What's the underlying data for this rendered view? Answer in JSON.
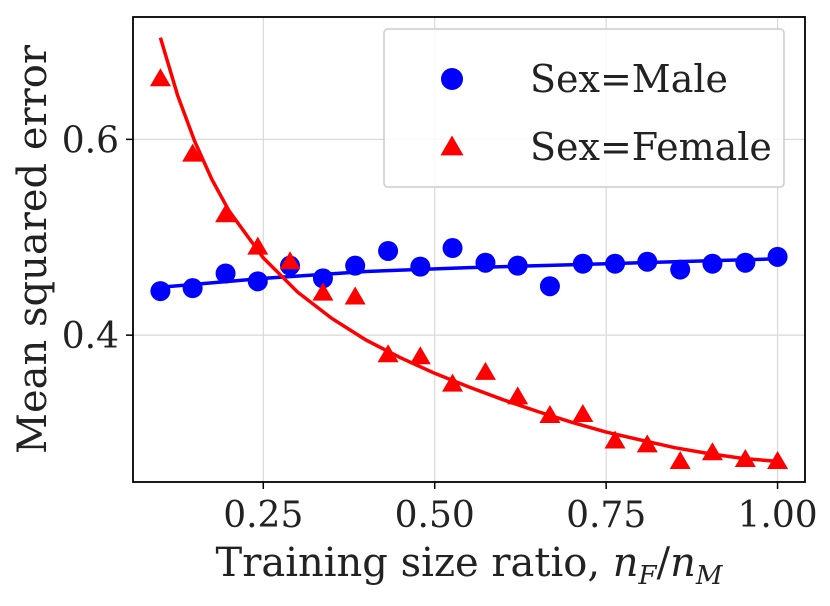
{
  "chart_data": {
    "type": "scatter",
    "title": "",
    "xlabel": "Training size ratio, n_F/n_M",
    "xlabel_prefix": "Training size ratio, ",
    "xlabel_math": {
      "n": "n",
      "sub_f": "F",
      "slash": "/",
      "sub_m": "M"
    },
    "ylabel": "Mean squared error",
    "xlim": [
      0.06,
      1.04
    ],
    "ylim": [
      0.25,
      0.725
    ],
    "grid": true,
    "legend_position": "top-right",
    "xticks": [
      0.25,
      0.5,
      0.75,
      1.0
    ],
    "xtick_labels": [
      "0.25",
      "0.50",
      "0.75",
      "1.00"
    ],
    "yticks": [
      0.4,
      0.6
    ],
    "ytick_labels": [
      "0.4",
      "0.6"
    ],
    "x": [
      0.1,
      0.147,
      0.195,
      0.242,
      0.289,
      0.337,
      0.384,
      0.432,
      0.479,
      0.526,
      0.574,
      0.621,
      0.668,
      0.716,
      0.763,
      0.81,
      0.858,
      0.905,
      0.953,
      1.0
    ],
    "series": [
      {
        "name": "Sex=Male",
        "marker": "circle",
        "color": "#0000ff",
        "values": [
          0.445,
          0.448,
          0.463,
          0.455,
          0.471,
          0.458,
          0.471,
          0.486,
          0.47,
          0.489,
          0.474,
          0.471,
          0.45,
          0.473,
          0.473,
          0.475,
          0.467,
          0.473,
          0.474,
          0.48
        ],
        "fit": [
          [
            0.1,
            0.449
          ],
          [
            0.25,
            0.458
          ],
          [
            0.4,
            0.465
          ],
          [
            0.55,
            0.469
          ],
          [
            0.7,
            0.472
          ],
          [
            0.85,
            0.475
          ],
          [
            1.0,
            0.478
          ]
        ]
      },
      {
        "name": "Sex=Female",
        "marker": "triangle",
        "color": "#ff0000",
        "values": [
          0.662,
          0.585,
          0.523,
          0.49,
          0.475,
          0.443,
          0.439,
          0.38,
          0.378,
          0.35,
          0.362,
          0.337,
          0.318,
          0.319,
          0.292,
          0.288,
          0.271,
          0.28,
          0.273,
          0.271
        ],
        "fit": [
          [
            0.1,
            0.704
          ],
          [
            0.125,
            0.645
          ],
          [
            0.15,
            0.598
          ],
          [
            0.175,
            0.559
          ],
          [
            0.2,
            0.527
          ],
          [
            0.25,
            0.479
          ],
          [
            0.3,
            0.444
          ],
          [
            0.35,
            0.417
          ],
          [
            0.4,
            0.395
          ],
          [
            0.45,
            0.377
          ],
          [
            0.5,
            0.361
          ],
          [
            0.55,
            0.347
          ],
          [
            0.6,
            0.334
          ],
          [
            0.65,
            0.322
          ],
          [
            0.7,
            0.311
          ],
          [
            0.75,
            0.301
          ],
          [
            0.8,
            0.293
          ],
          [
            0.85,
            0.285
          ],
          [
            0.9,
            0.279
          ],
          [
            0.95,
            0.274
          ],
          [
            1.0,
            0.271
          ]
        ]
      }
    ]
  }
}
